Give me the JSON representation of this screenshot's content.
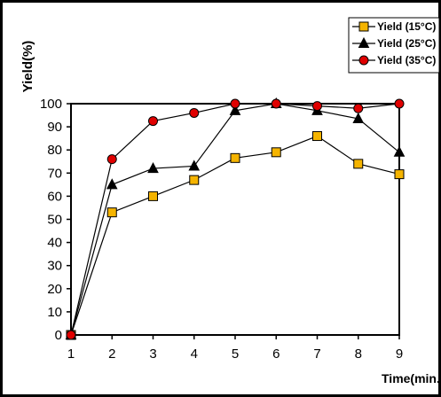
{
  "chart_data": {
    "type": "line",
    "title": "",
    "xlabel": "Time(min.",
    "ylabel": "Yield(%)",
    "x": [
      1,
      2,
      3,
      4,
      5,
      6,
      7,
      8,
      9
    ],
    "xlim": [
      1,
      9
    ],
    "ylim": [
      0,
      100
    ],
    "yticks": [
      0,
      10,
      20,
      30,
      40,
      50,
      60,
      70,
      80,
      90,
      100
    ],
    "grid": false,
    "legend_position": "top-right",
    "series": [
      {
        "name": "Yield (15°C)",
        "values": [
          0,
          53,
          60,
          67,
          76.5,
          79,
          86,
          74,
          69.5
        ],
        "color": "#f5b400",
        "marker": "square"
      },
      {
        "name": "Yield (25°C)",
        "values": [
          0,
          65,
          72,
          73,
          97,
          100,
          97,
          93.5,
          79
        ],
        "color": "#000000",
        "marker": "triangle"
      },
      {
        "name": "Yield (35°C)",
        "values": [
          0,
          76,
          92.5,
          96,
          100,
          100,
          99,
          98,
          100
        ],
        "color": "#e00000",
        "marker": "circle"
      }
    ]
  }
}
